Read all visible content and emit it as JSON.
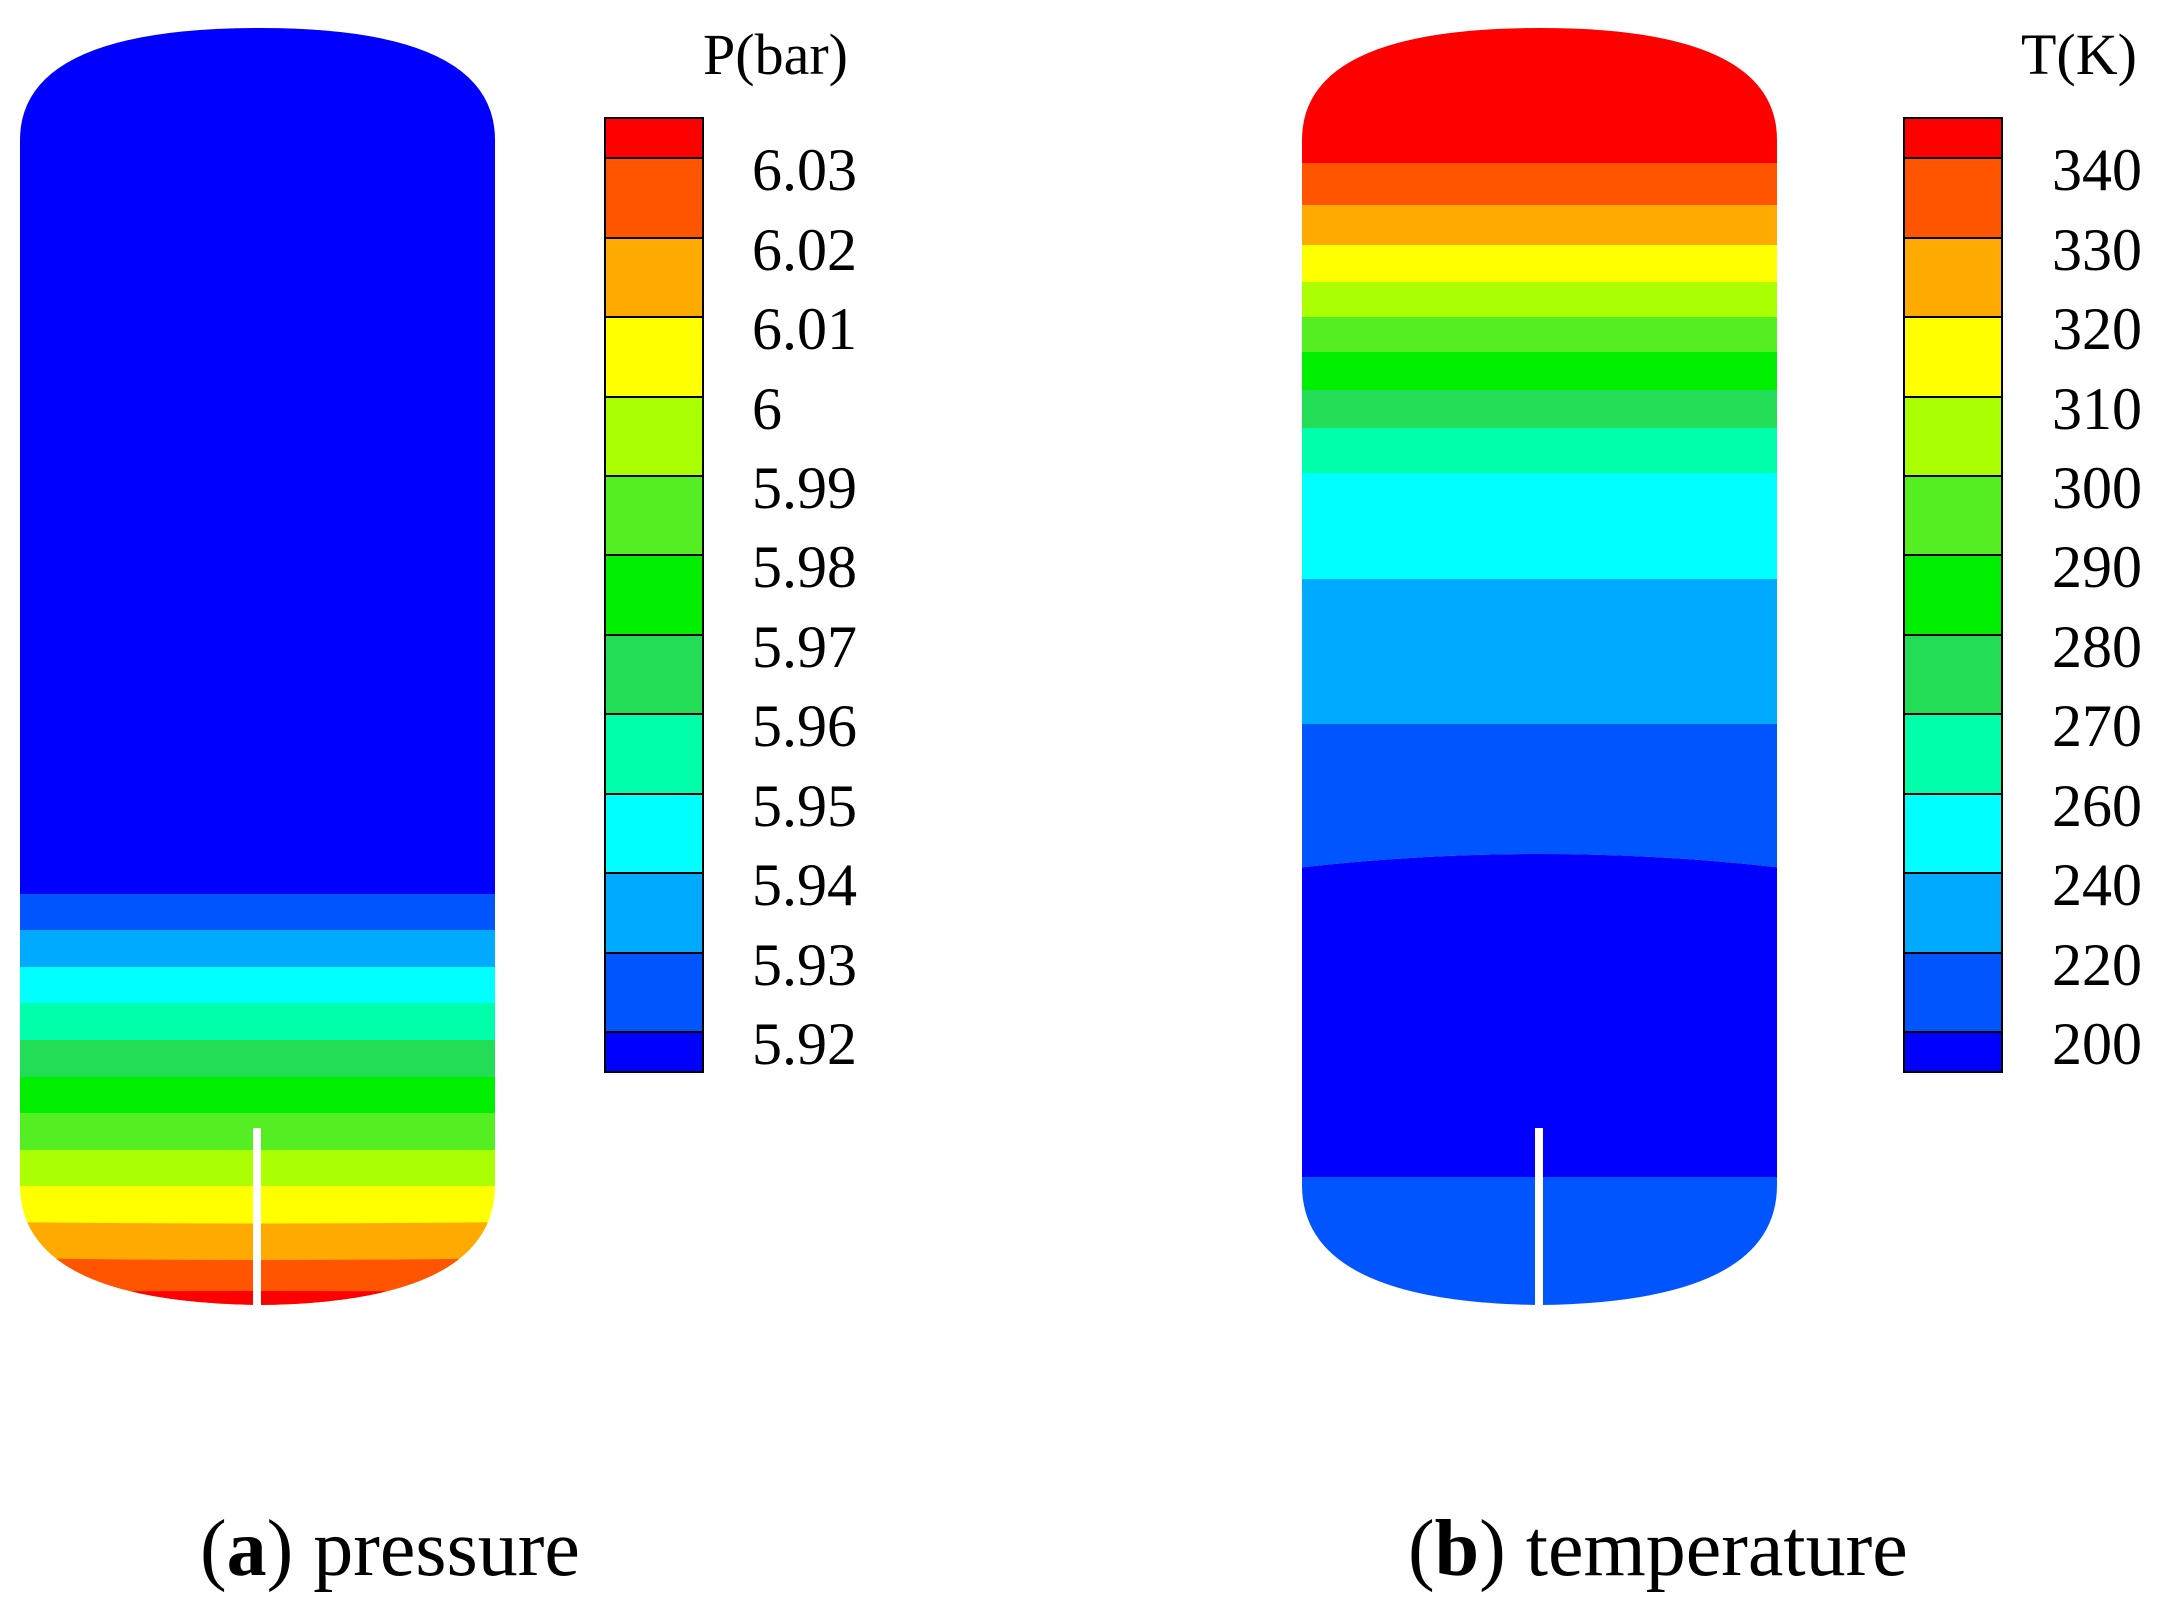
{
  "figure": {
    "panels": [
      {
        "id": "a",
        "letter": "a",
        "caption": "pressure"
      },
      {
        "id": "b",
        "letter": "b",
        "caption": "temperature"
      }
    ]
  },
  "chart_data": [
    {
      "type": "heatmap",
      "title": "(a) pressure",
      "colorbar_title": "P(bar)",
      "colorbar_levels": [
        "6.03",
        "6.02",
        "6.01",
        "6",
        "5.99",
        "5.98",
        "5.97",
        "5.96",
        "5.95",
        "5.94",
        "5.93",
        "5.92"
      ],
      "colormap": [
        "#ff0000",
        "#ff5500",
        "#ffaa00",
        "#ffff00",
        "#aaff00",
        "#55ee22",
        "#00ee00",
        "#22dd55",
        "#00ffaa",
        "#00ffff",
        "#00aaff",
        "#0055ff",
        "#0000ff"
      ],
      "field_description_levels_top_to_bottom": [
        "5.92",
        "5.93",
        "5.94",
        "5.95",
        "5.96",
        "5.97",
        "5.98",
        "5.99",
        "6",
        "6.01",
        "6.02",
        "6.03"
      ],
      "xlabel": "",
      "ylabel": ""
    },
    {
      "type": "heatmap",
      "title": "(b) temperature",
      "colorbar_title": "T(K)",
      "colorbar_levels": [
        "340",
        "330",
        "320",
        "310",
        "300",
        "290",
        "280",
        "270",
        "260",
        "240",
        "220",
        "200"
      ],
      "colormap": [
        "#ff0000",
        "#ff5500",
        "#ffaa00",
        "#ffff00",
        "#aaff00",
        "#55ee22",
        "#00ee00",
        "#22dd55",
        "#00ffaa",
        "#00ffff",
        "#00aaff",
        "#0055ff",
        "#0000ff"
      ],
      "field_description_levels_top_to_bottom": [
        ">340",
        "330",
        "320",
        "310",
        "300",
        "290",
        "280",
        "270",
        "260",
        "240",
        "220",
        "200"
      ],
      "xlabel": "",
      "ylabel": ""
    }
  ]
}
